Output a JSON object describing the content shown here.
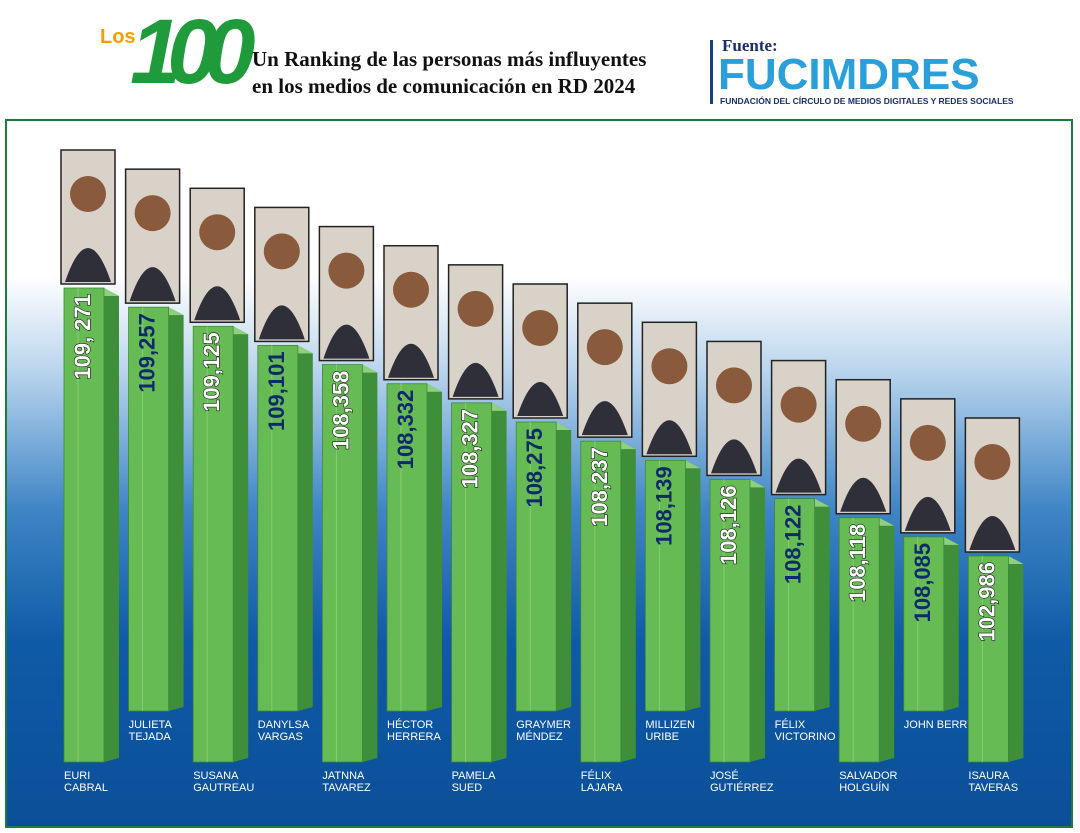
{
  "header": {
    "logo_prefix": "Los",
    "logo_number": "100",
    "subtitle_line1": "Un Ranking de las personas más influyentes",
    "subtitle_line2": "en los medios de comunicación en RD 2024",
    "source_label": "Fuente:",
    "source_brand": "FUCIMDRES",
    "source_full": "FUNDACIÓN DEL CÍRCULO DE MEDIOS DIGITALES Y REDES SOCIALES"
  },
  "colors": {
    "bar_front": "#66bb55",
    "bar_side": "#3f8f3a",
    "bar_top": "#8fd07f",
    "logo_green": "#1f9b3b",
    "logo_orange": "#f2a000",
    "brand_blue": "#2b9fd9",
    "value_dark": "#0e2a6a"
  },
  "chart_data": {
    "type": "bar",
    "categories": [
      [
        "EURI",
        "CABRAL"
      ],
      [
        "JULIETA",
        "TEJADA"
      ],
      [
        "SUSANA",
        "GAUTREAU"
      ],
      [
        "DANYLSA",
        "VARGAS"
      ],
      [
        "JATNNA",
        "TAVAREZ"
      ],
      [
        "HÉCTOR",
        "HERRERA"
      ],
      [
        "PAMELA",
        "SUED"
      ],
      [
        "GRAYMER",
        "MÉNDEZ"
      ],
      [
        "FÉLIX",
        "LAJARA"
      ],
      [
        "MILLIZEN",
        "URIBE"
      ],
      [
        "JOSÉ",
        "GUTIÉRREZ"
      ],
      [
        "FÉLIX",
        "VICTORINO"
      ],
      [
        "SALVADOR",
        "HOLGUÍN"
      ],
      [
        "JOHN BERRY"
      ],
      [
        "ISAURA",
        "TAVERAS"
      ]
    ],
    "values": [
      109271,
      109257,
      109125,
      109101,
      108358,
      108332,
      108327,
      108275,
      108237,
      108139,
      108126,
      108122,
      108118,
      108085,
      102986
    ],
    "value_labels": [
      "109, 271",
      "109,257",
      "109,125",
      "109,101",
      "108,358",
      "108,332",
      "108,327",
      "108,275",
      "108,237",
      "108,139",
      "108,126",
      "108,122",
      "108,118",
      "108,085",
      "102,986"
    ],
    "value_label_style": [
      "light",
      "dark",
      "light",
      "dark",
      "light",
      "dark",
      "light",
      "dark",
      "light",
      "dark",
      "light",
      "dark",
      "light",
      "dark",
      "light"
    ],
    "photo_icons": [
      "portrait-photo",
      "portrait-photo",
      "portrait-photo",
      "portrait-photo",
      "portrait-photo",
      "portrait-photo",
      "portrait-photo",
      "portrait-photo",
      "portrait-photo",
      "portrait-photo",
      "portrait-photo",
      "portrait-photo",
      "portrait-photo",
      "portrait-photo",
      "portrait-photo"
    ],
    "title": "",
    "xlabel": "",
    "ylabel": "",
    "grid": false,
    "legend": "none"
  }
}
